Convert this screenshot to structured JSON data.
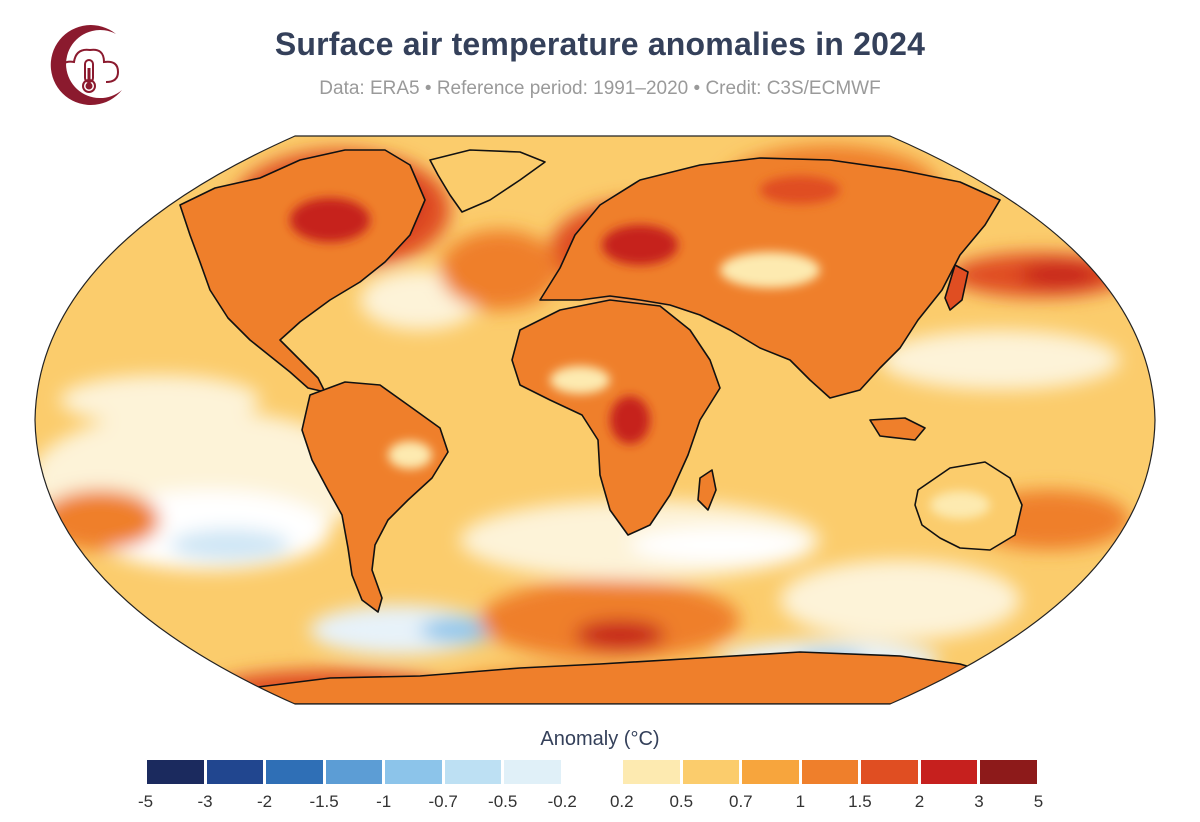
{
  "header": {
    "title": "Surface air temperature anomalies in 2024",
    "subtitle": "Data: ERA5 • Reference period: 1991–2020 • Credit: C3S/ECMWF",
    "logo_color": "#8b1a2e"
  },
  "map": {
    "projection": "Robinson",
    "ocean_base_color": "#fbd28a",
    "coastline_color": "#111111"
  },
  "legend": {
    "title": "Anomaly (°C)",
    "ticks": [
      "-5",
      "-3",
      "-2",
      "-1.5",
      "-1",
      "-0.7",
      "-0.5",
      "-0.2",
      "0.2",
      "0.5",
      "0.7",
      "1",
      "1.5",
      "2",
      "3",
      "5"
    ],
    "colors": [
      "#1b2a5e",
      "#21468f",
      "#2f6fb6",
      "#5c9dd5",
      "#8cc4ea",
      "#bde0f3",
      "#e0f0f8",
      "#ffffff",
      "#fdeab0",
      "#fbcc6c",
      "#f7a53d",
      "#ef7f2b",
      "#e04e22",
      "#c6201e",
      "#8d1a1a"
    ]
  }
}
